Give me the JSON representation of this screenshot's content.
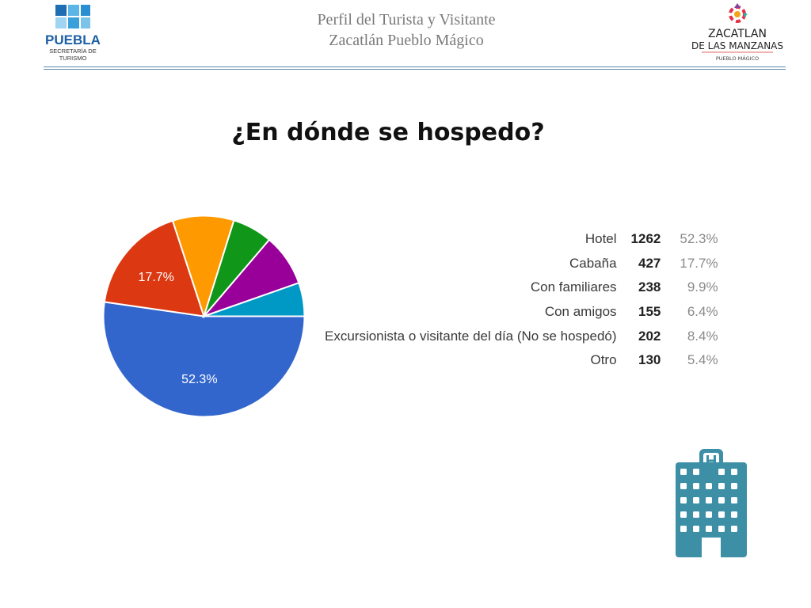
{
  "header": {
    "title_line1": "Perfil del Turista y Visitante",
    "title_line2": "Zacatlán Pueblo Mágico",
    "left_logo": {
      "name": "PUEBLA",
      "sub1": "SECRETARÍA DE",
      "sub2": "TURISMO"
    },
    "right_logo": {
      "line1": "ZACATLAN",
      "line2": "DE LAS MANZANAS",
      "line3": "PUEBLO MÁGICO"
    }
  },
  "title": "¿En dónde se hospedo?",
  "chart_data": {
    "type": "pie",
    "title": "¿En dónde se hospedo?",
    "categories": [
      "Hotel",
      "Cabaña",
      "Con familiares",
      "Con amigos",
      "Excursionista o visitante del día (No se hospedó)",
      "Otro"
    ],
    "values": [
      1262,
      427,
      238,
      155,
      202,
      130
    ],
    "percents": [
      "52.3%",
      "17.7%",
      "9.9%",
      "6.4%",
      "8.4%",
      "5.4%"
    ],
    "colors": [
      "#3366cc",
      "#dc3912",
      "#ff9900",
      "#109618",
      "#990099",
      "#0099c6"
    ],
    "slice_labels": [
      "52.3%",
      "17.7%",
      "",
      "",
      "",
      ""
    ],
    "legend_position": "right"
  },
  "colors": {
    "header_rule": "#5d8aa8",
    "icon": "#3d8fa6"
  },
  "icon": "hotel-building-icon"
}
